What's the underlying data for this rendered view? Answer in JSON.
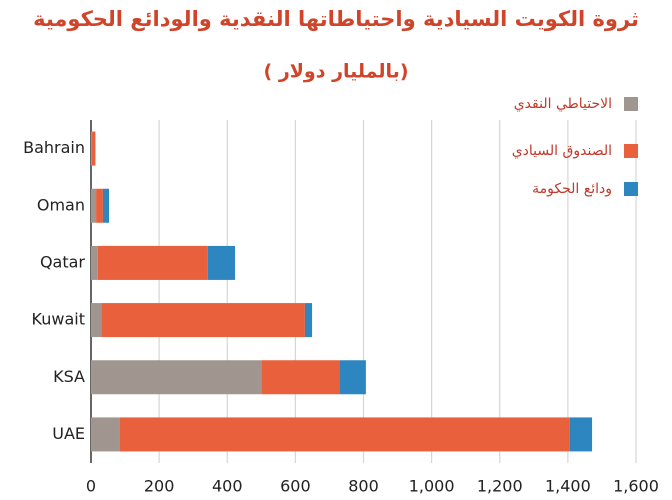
{
  "chart_data": {
    "type": "stacked-bar-horizontal",
    "title": "ثروة الكويت السيادية واحتياطاتها النقدية والودائع الحكومية",
    "subtitle": "( بالمليار دولار)",
    "categories": [
      "Bahrain",
      "Oman",
      "Qatar",
      "Kuwait",
      "KSA",
      "UAE"
    ],
    "series": [
      {
        "name": "الاحتياطي النقدي",
        "color": "#a0958f",
        "values": [
          3,
          15,
          20,
          30,
          502,
          85
        ]
      },
      {
        "name": "الصندوق السيادي",
        "color": "#e8603c",
        "values": [
          10,
          20,
          323,
          598,
          229,
          1321
        ]
      },
      {
        "name": "ودائع الحكومة",
        "color": "#2e86c1",
        "values": [
          0,
          18,
          80,
          21,
          76,
          65
        ]
      }
    ],
    "xlim": [
      0,
      1600
    ],
    "xticks": [
      0,
      200,
      400,
      600,
      800,
      {
        "value": 1000,
        "label": "1,000"
      },
      {
        "value": 1200,
        "label": "1,200"
      },
      {
        "value": 1400,
        "label": "1,400"
      },
      {
        "value": 1600,
        "label": "1,600"
      }
    ],
    "grid": true,
    "legend": "top-right"
  }
}
